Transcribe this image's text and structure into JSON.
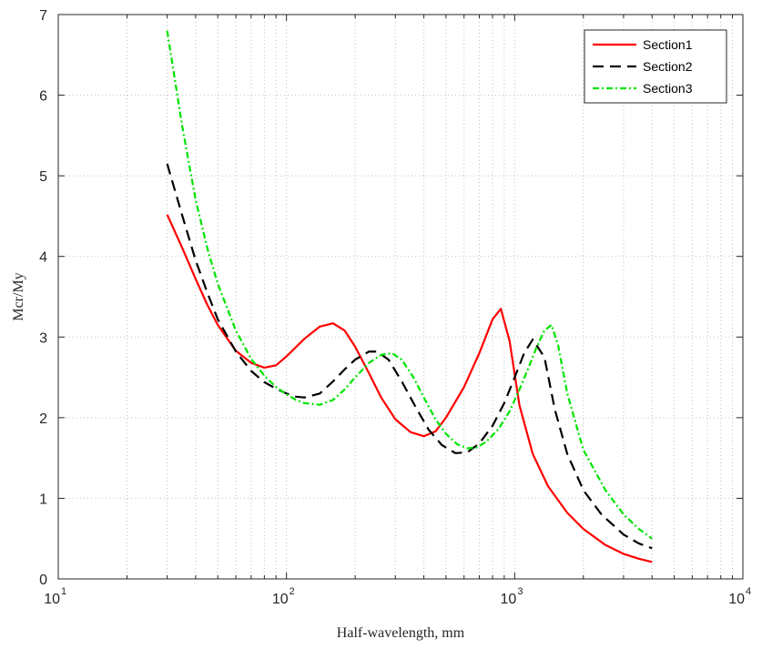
{
  "chart_data": {
    "type": "line",
    "xlabel": "Half-wavelength, mm",
    "ylabel": "Mcr/My",
    "x_scale": "log",
    "xlim": [
      10,
      10000
    ],
    "ylim": [
      0,
      7
    ],
    "grid": true,
    "legend_position": "top-right",
    "x_tick_labels": [
      {
        "base": "10",
        "exp": "1"
      },
      {
        "base": "10",
        "exp": "2"
      },
      {
        "base": "10",
        "exp": "3"
      },
      {
        "base": "10",
        "exp": "4"
      }
    ],
    "y_tick_labels": [
      "0",
      "1",
      "2",
      "3",
      "4",
      "5",
      "6",
      "7"
    ],
    "series": [
      {
        "name": "Section1",
        "color": "#ff0000",
        "dash": "solid",
        "x": [
          30,
          35,
          40,
          45,
          50,
          60,
          70,
          80,
          90,
          100,
          120,
          140,
          160,
          180,
          200,
          230,
          260,
          300,
          350,
          400,
          450,
          500,
          600,
          700,
          800,
          870,
          950,
          1050,
          1200,
          1400,
          1700,
          2000,
          2500,
          3000,
          3500,
          4000
        ],
        "y": [
          4.52,
          4.1,
          3.72,
          3.4,
          3.15,
          2.83,
          2.68,
          2.62,
          2.65,
          2.76,
          2.98,
          3.13,
          3.17,
          3.08,
          2.88,
          2.55,
          2.25,
          1.98,
          1.82,
          1.77,
          1.83,
          2.0,
          2.38,
          2.8,
          3.22,
          3.35,
          2.95,
          2.15,
          1.55,
          1.15,
          0.82,
          0.62,
          0.42,
          0.31,
          0.25,
          0.21
        ]
      },
      {
        "name": "Section2",
        "color": "#000000",
        "dash": "dashed",
        "x": [
          30,
          35,
          40,
          45,
          50,
          60,
          70,
          80,
          90,
          100,
          110,
          120,
          140,
          160,
          180,
          200,
          230,
          250,
          280,
          320,
          370,
          420,
          480,
          550,
          620,
          700,
          800,
          900,
          1000,
          1100,
          1200,
          1350,
          1500,
          1700,
          2000,
          2400,
          3000,
          3500,
          4000
        ],
        "y": [
          5.15,
          4.5,
          3.95,
          3.55,
          3.22,
          2.82,
          2.58,
          2.44,
          2.36,
          2.3,
          2.26,
          2.25,
          2.3,
          2.45,
          2.6,
          2.72,
          2.82,
          2.82,
          2.72,
          2.45,
          2.12,
          1.85,
          1.66,
          1.56,
          1.57,
          1.68,
          1.9,
          2.18,
          2.5,
          2.8,
          2.97,
          2.75,
          2.1,
          1.55,
          1.1,
          0.8,
          0.55,
          0.44,
          0.38
        ]
      },
      {
        "name": "Section3",
        "color": "#00e400",
        "dash": "dashdot",
        "x": [
          30,
          35,
          40,
          45,
          50,
          60,
          70,
          80,
          90,
          100,
          110,
          120,
          140,
          160,
          180,
          200,
          230,
          260,
          290,
          320,
          360,
          400,
          450,
          500,
          560,
          620,
          680,
          750,
          850,
          950,
          1050,
          1150,
          1250,
          1350,
          1450,
          1550,
          1700,
          2000,
          2500,
          3000,
          3500,
          4000
        ],
        "y": [
          6.8,
          5.6,
          4.7,
          4.1,
          3.66,
          3.08,
          2.73,
          2.52,
          2.38,
          2.29,
          2.22,
          2.18,
          2.16,
          2.22,
          2.35,
          2.5,
          2.68,
          2.78,
          2.8,
          2.72,
          2.5,
          2.25,
          1.98,
          1.8,
          1.67,
          1.62,
          1.63,
          1.7,
          1.86,
          2.08,
          2.35,
          2.62,
          2.88,
          3.08,
          3.15,
          2.9,
          2.3,
          1.6,
          1.1,
          0.8,
          0.62,
          0.5
        ]
      }
    ]
  }
}
